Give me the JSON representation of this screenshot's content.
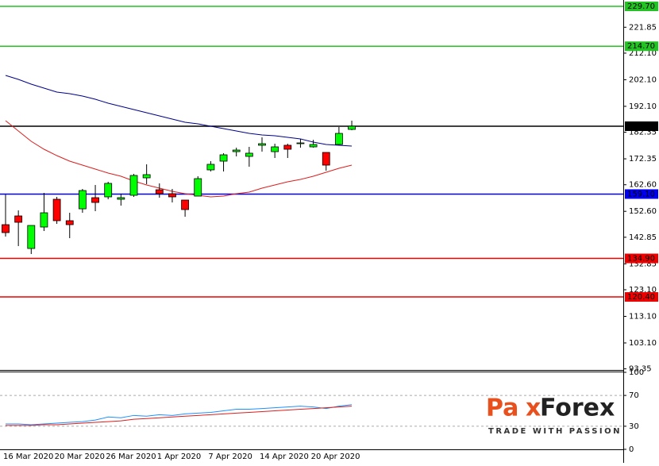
{
  "chart_data": [
    {
      "type": "candlestick",
      "categories": [
        "16 Mar 2020",
        null,
        null,
        null,
        "20 Mar 2020",
        null,
        null,
        null,
        "26 Mar 2020",
        null,
        null,
        null,
        "1 Apr 2020",
        null,
        null,
        null,
        "7 Apr 2020",
        null,
        null,
        null,
        "14 Apr 2020",
        null,
        null,
        null,
        "20 Apr 2020",
        null,
        null,
        null
      ],
      "open": [
        147.59,
        150.87,
        138.63,
        146.69,
        157.14,
        149.08,
        153.55,
        157.74,
        158.04,
        157.14,
        158.63,
        165.2,
        160.72,
        159.23,
        156.84,
        158.33,
        168.19,
        171.47,
        175.05,
        173.27,
        177.45,
        175.05,
        177.45,
        178.04,
        176.85,
        174.76,
        177.74,
        183.42
      ],
      "high": [
        158.93,
        152.96,
        147.29,
        159.53,
        158.04,
        152.06,
        161.02,
        162.51,
        163.71,
        159.23,
        166.7,
        170.28,
        163.11,
        161.02,
        156.84,
        165.8,
        171.47,
        174.46,
        176.55,
        176.85,
        180.43,
        178.04,
        178.04,
        179.8,
        179.5,
        174.76,
        184.31,
        186.7
      ],
      "low": [
        143.11,
        139.53,
        136.54,
        145.2,
        147.88,
        142.51,
        152.06,
        152.66,
        157.14,
        154.75,
        158.04,
        162.81,
        157.74,
        155.94,
        150.57,
        158.33,
        167.59,
        167.59,
        173.27,
        169.38,
        175.05,
        172.67,
        172.67,
        176.55,
        176.55,
        167.89,
        177.45,
        183.12
      ],
      "close": [
        144.6,
        148.48,
        147.29,
        152.06,
        149.08,
        147.59,
        160.42,
        155.94,
        163.11,
        157.74,
        166.1,
        166.4,
        159.23,
        158.04,
        153.26,
        164.9,
        170.28,
        173.86,
        175.65,
        174.46,
        178.04,
        176.85,
        175.95,
        178.34,
        177.74,
        169.98,
        181.92,
        184.62
      ],
      "up_color": "#00ff00",
      "down_color": "#ff0000",
      "edge_color": "#000000",
      "overlays": [
        {
          "color": "#00008b",
          "values": [
            203.72,
            202.23,
            200.44,
            198.94,
            197.45,
            196.85,
            195.96,
            194.76,
            193.27,
            192.08,
            190.88,
            189.69,
            188.49,
            187.3,
            186.1,
            185.51,
            184.61,
            183.72,
            182.82,
            181.92,
            181.33,
            181.03,
            180.43,
            179.83,
            178.64,
            177.74,
            177.45,
            177.15
          ]
        },
        {
          "color": "#dc1e1e",
          "values": [
            186.7,
            182.82,
            178.94,
            175.95,
            173.56,
            171.47,
            169.98,
            168.49,
            166.99,
            165.8,
            164.01,
            162.51,
            161.32,
            160.12,
            159.23,
            158.63,
            158.04,
            158.33,
            159.23,
            159.83,
            161.32,
            162.51,
            163.71,
            164.61,
            165.8,
            167.29,
            168.79,
            169.98
          ]
        }
      ],
      "levels": [
        {
          "value": 229.7,
          "label": "229.70",
          "color": "#22c322"
        },
        {
          "value": 214.7,
          "label": "214.70",
          "color": "#22c322"
        },
        {
          "value": 184.62,
          "label": "184.62",
          "color": "#000000"
        },
        {
          "value": 159.1,
          "label": "159.10",
          "color": "#0000ee"
        },
        {
          "value": 134.9,
          "label": "134.90",
          "color": "#ee0000"
        },
        {
          "value": 120.4,
          "label": "120.40",
          "color": "#ee0000"
        }
      ],
      "ylim": [
        93.24,
        232.09
      ],
      "yticks": [
        {
          "value": 93.35,
          "label": "93.35"
        },
        {
          "value": 103.1,
          "label": "103.10"
        },
        {
          "value": 113.1,
          "label": "113.10"
        },
        {
          "value": 123.1,
          "label": "123.10"
        },
        132.85,
        142.85,
        {
          "value": 152.6,
          "label": "152.60"
        },
        {
          "value": 162.6,
          "label": "162.60"
        },
        172.35,
        182.35,
        {
          "value": 192.1,
          "label": "192.10"
        },
        {
          "value": 202.1,
          "label": "202.10"
        },
        {
          "value": 212.1,
          "label": "212.10"
        },
        221.85
      ]
    },
    {
      "type": "line",
      "series": [
        {
          "color": "#1e90ff",
          "values": [
            33,
            33,
            32,
            33,
            34,
            35,
            36,
            38,
            42,
            41,
            44,
            43,
            45,
            44,
            46,
            47,
            48,
            50,
            52,
            52,
            53,
            54,
            55,
            56,
            55,
            53,
            56,
            58
          ]
        },
        {
          "color": "#dc1e1e",
          "values": [
            31,
            31,
            31,
            32,
            32,
            33,
            34,
            35,
            36,
            37,
            39,
            40,
            41,
            42,
            43,
            44,
            45,
            46,
            47,
            48,
            49,
            50,
            51,
            52,
            53,
            54,
            55,
            56
          ]
        }
      ],
      "ylim": [
        0,
        100
      ],
      "yticks": [
        0,
        30,
        70,
        100
      ],
      "levels": [
        30,
        70
      ]
    }
  ],
  "logo": {
    "part1": "Pa",
    "part2": "x",
    "part3": "Forex",
    "tagline": "TRADE WITH PASSION"
  }
}
